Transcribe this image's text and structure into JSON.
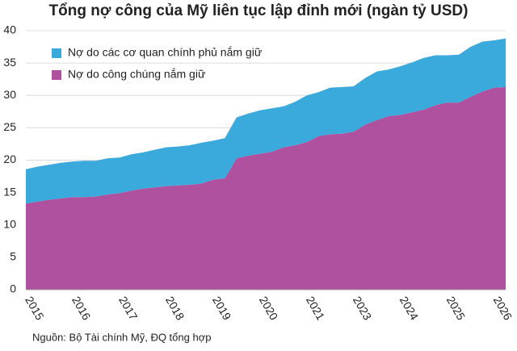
{
  "chart_data": {
    "type": "stacked_area",
    "title": "Tổng nợ công của Mỹ liên tục lập đỉnh mới (ngàn tỷ USD)",
    "source": "Nguồn: Bộ Tài chính Mỹ, ĐQ tổng hợp",
    "categories": [
      "2015",
      null,
      null,
      null,
      "2016",
      null,
      null,
      null,
      "2017",
      null,
      null,
      null,
      "2018",
      null,
      null,
      null,
      "2019",
      null,
      null,
      null,
      "2020",
      null,
      null,
      null,
      "2021",
      null,
      null,
      null,
      "2023",
      null,
      null,
      null,
      "2024",
      null,
      null,
      null,
      "2025",
      null,
      null,
      null,
      "2026",
      null
    ],
    "series": [
      {
        "name": "Nợ do các cơ quan chính phủ nắm giữ",
        "color": "#3aa9dc",
        "values": [
          5.3,
          5.4,
          5.4,
          5.5,
          5.5,
          5.6,
          5.5,
          5.6,
          5.5,
          5.6,
          5.6,
          5.8,
          6.0,
          6.0,
          6.1,
          6.3,
          6.0,
          6.2,
          6.3,
          6.5,
          6.7,
          6.7,
          6.3,
          6.7,
          7.2,
          6.8,
          7.2,
          7.2,
          7.0,
          7.2,
          7.5,
          7.2,
          7.5,
          7.7,
          8.0,
          7.7,
          7.3,
          7.4,
          7.7,
          7.7,
          7.3,
          7.5
        ]
      },
      {
        "name": "Nợ do công chúng nắm giữ",
        "color": "#b0519f",
        "values": [
          13.3,
          13.6,
          13.9,
          14.1,
          14.3,
          14.3,
          14.4,
          14.7,
          14.9,
          15.3,
          15.6,
          15.8,
          16.0,
          16.1,
          16.2,
          16.4,
          17.0,
          17.2,
          20.3,
          20.7,
          21.0,
          21.3,
          22.0,
          22.3,
          22.8,
          23.7,
          24.0,
          24.1,
          24.4,
          25.5,
          26.2,
          26.8,
          27.0,
          27.4,
          27.8,
          28.5,
          28.9,
          28.9,
          29.8,
          30.6,
          31.2,
          31.3
        ]
      }
    ],
    "ylim": [
      0,
      40
    ],
    "yticks": [
      0,
      5,
      10,
      15,
      20,
      25,
      30,
      35,
      40
    ],
    "grid": true,
    "legend": "upper left"
  }
}
